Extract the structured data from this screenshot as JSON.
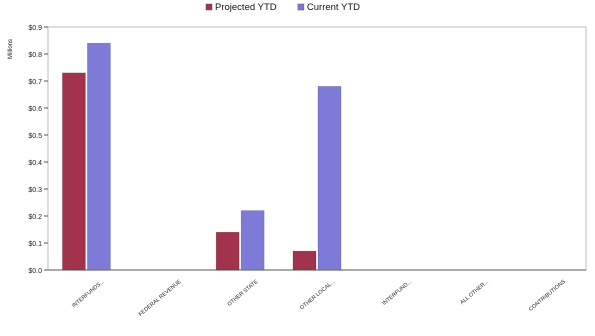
{
  "chart_data": {
    "type": "bar",
    "categories": [
      "INTERFUNDS...",
      "FEDERAL REVENUE",
      "OTHER STATE",
      "OTHER LOCAL...",
      "INTERFUND...",
      "ALL OTHER...",
      "CONTRIBUTIONS"
    ],
    "series": [
      {
        "name": "Projected YTD",
        "values": [
          0.73,
          0,
          0.14,
          0.07,
          0,
          0,
          0
        ],
        "color": "#a3324c"
      },
      {
        "name": "Current YTD",
        "values": [
          0.84,
          0,
          0.22,
          0.68,
          0,
          0,
          0
        ],
        "color": "#7e7ad8"
      }
    ],
    "ylabel": "Millions",
    "ylim": [
      0,
      0.9
    ],
    "yticks": [
      "$0.0",
      "$0.1",
      "$0.2",
      "$0.3",
      "$0.4",
      "$0.5",
      "$0.6",
      "$0.7",
      "$0.8",
      "$0.9"
    ],
    "ytick_values": [
      0,
      0.1,
      0.2,
      0.3,
      0.4,
      0.5,
      0.6,
      0.7,
      0.8,
      0.9
    ],
    "legend_position": "top-center",
    "grid": false
  }
}
